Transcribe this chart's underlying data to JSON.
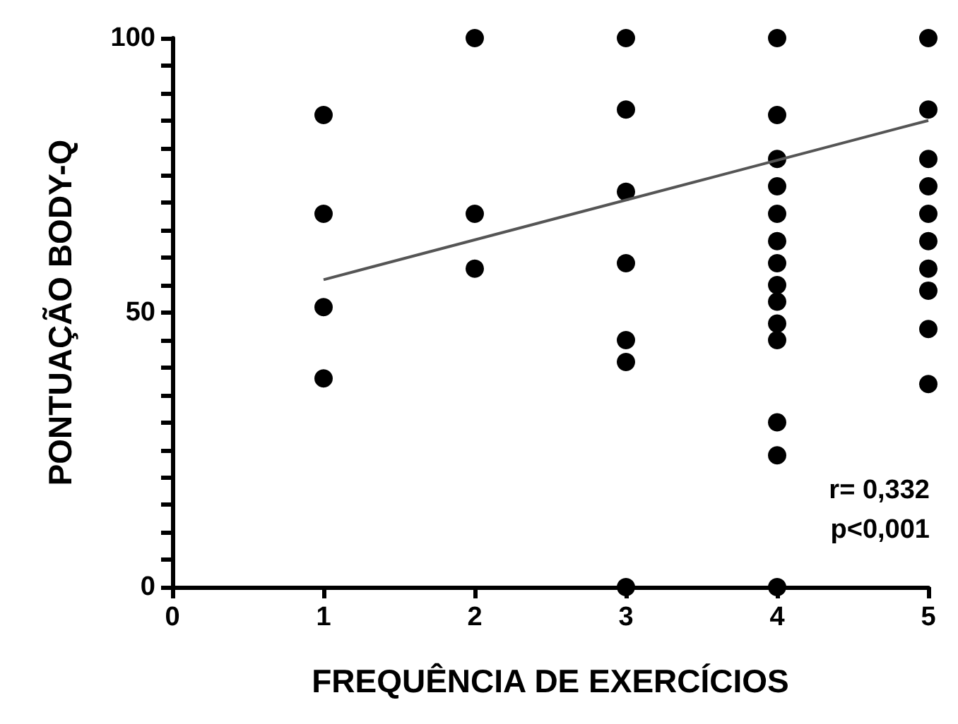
{
  "chart_data": {
    "type": "scatter",
    "xlabel": "FREQUÊNCIA DE EXERCÍCIOS",
    "ylabel": "PONTUAÇÃO BODY-Q",
    "xlim": [
      0,
      5
    ],
    "xticks": [
      0,
      1,
      2,
      3,
      4,
      5
    ],
    "ylim": [
      0,
      100
    ],
    "yticks": [
      0,
      {
        "value": 5,
        "label": null
      },
      {
        "value": 10,
        "label": null
      },
      {
        "value": 15,
        "label": null
      },
      {
        "value": 20,
        "label": null
      },
      {
        "value": 25,
        "label": null
      },
      {
        "value": 30,
        "label": null
      },
      {
        "value": 35,
        "label": null
      },
      {
        "value": 40,
        "label": null
      },
      {
        "value": 45,
        "label": null
      },
      50,
      {
        "value": 55,
        "label": null
      },
      {
        "value": 60,
        "label": null
      },
      {
        "value": 65,
        "label": null
      },
      {
        "value": 70,
        "label": null
      },
      {
        "value": 75,
        "label": null
      },
      {
        "value": 80,
        "label": null
      },
      {
        "value": 85,
        "label": null
      },
      {
        "value": 90,
        "label": null
      },
      {
        "value": 95,
        "label": null
      },
      100
    ],
    "grid": false,
    "marker": "circle",
    "series": [
      {
        "color": "#000000",
        "x": [
          1,
          1,
          1,
          1,
          2,
          2,
          2,
          3,
          3,
          3,
          3,
          3,
          3,
          3,
          4,
          4,
          4,
          4,
          4,
          4,
          4,
          4,
          4,
          4,
          4,
          4,
          4,
          4,
          5,
          5,
          5,
          5,
          5,
          5,
          5,
          5,
          5,
          5
        ],
        "values": [
          86,
          68,
          51,
          38,
          100,
          68,
          58,
          100,
          87,
          72,
          59,
          45,
          41,
          0,
          100,
          86,
          78,
          73,
          68,
          63,
          59,
          55,
          52,
          48,
          45,
          30,
          24,
          0,
          100,
          87,
          78,
          73,
          68,
          63,
          58,
          54,
          47,
          37
        ]
      },
      {
        "type": "line",
        "color": "#555555",
        "marker": "none",
        "line_style": "solid",
        "x": [
          1,
          5
        ],
        "values": [
          56,
          85
        ]
      }
    ],
    "annotations": [
      "r= 0,332",
      "p<0,001"
    ]
  }
}
